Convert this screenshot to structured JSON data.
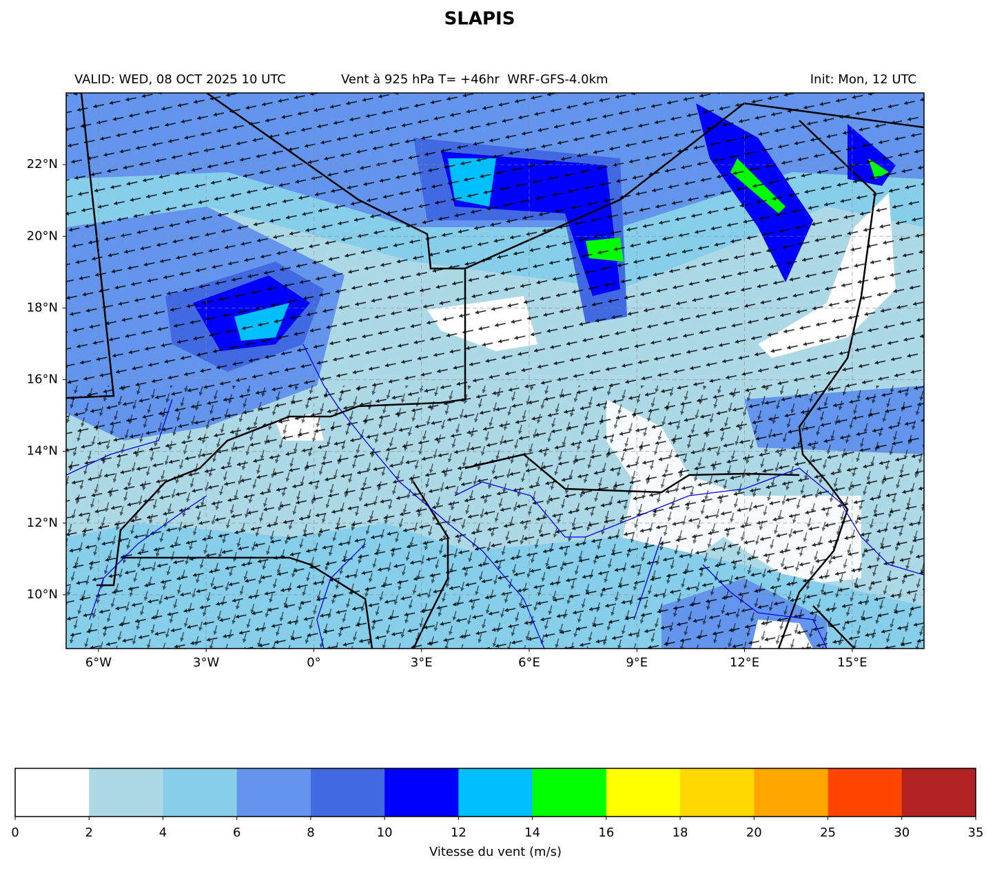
{
  "title": "SLAPIS",
  "subtitle_left": "VALID: WED, 08 OCT 2025 10 UTC",
  "subtitle_center": "Vent à 925 hPa T= +46hr  WRF-GFS-4.0km",
  "subtitle_right": "Init: Mon, 12 UTC",
  "map": {
    "xlim": [
      -6.9,
      17
    ],
    "ylim": [
      8.5,
      24
    ],
    "grid": true,
    "xticks": [
      {
        "value": -6,
        "label": "6°W"
      },
      {
        "value": -3,
        "label": "3°W"
      },
      {
        "value": 0,
        "label": "0°"
      },
      {
        "value": 3,
        "label": "3°E"
      },
      {
        "value": 6,
        "label": "6°E"
      },
      {
        "value": 9,
        "label": "9°E"
      },
      {
        "value": 12,
        "label": "12°E"
      },
      {
        "value": 15,
        "label": "15°E"
      }
    ],
    "yticks": [
      {
        "value": 10,
        "label": "10°N"
      },
      {
        "value": 12,
        "label": "12°N"
      },
      {
        "value": 14,
        "label": "14°N"
      },
      {
        "value": 16,
        "label": "16°N"
      },
      {
        "value": 18,
        "label": "18°N"
      },
      {
        "value": 20,
        "label": "20°N"
      },
      {
        "value": 22,
        "label": "22°N"
      }
    ]
  },
  "colorbar": {
    "label": "Vitesse du vent (m/s)",
    "boundaries": [
      0,
      2,
      4,
      6,
      8,
      10,
      12,
      14,
      16,
      18,
      20,
      25,
      30,
      35
    ],
    "colors": [
      "#ffffff",
      "#add8e6",
      "#87ceeb",
      "#6495ed",
      "#4169e1",
      "#0000ff",
      "#00bfff",
      "#00ff00",
      "#ffff00",
      "#ffd700",
      "#ffa500",
      "#ff4500",
      "#b22222"
    ]
  }
}
